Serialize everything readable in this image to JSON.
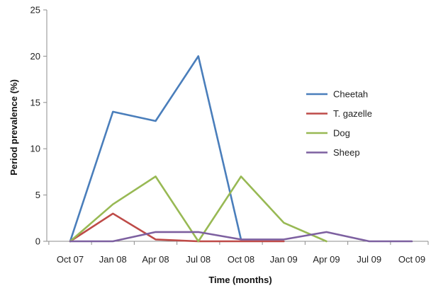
{
  "chart_data": {
    "type": "line",
    "title": "",
    "xlabel": "Time (months)",
    "ylabel": "Period prevalence (%)",
    "ylim": [
      0,
      25
    ],
    "yticks": [
      0,
      5,
      10,
      15,
      20,
      25
    ],
    "categories": [
      "Oct 07",
      "Jan 08",
      "Apr 08",
      "Jul 08",
      "Oct 08",
      "Jan 09",
      "Apr 09",
      "Jul 09",
      "Oct 09"
    ],
    "grid": false,
    "legend_position": "right",
    "series": [
      {
        "name": "Cheetah",
        "color": "#4a7ebb",
        "values": [
          0,
          14,
          13,
          20,
          0.2,
          null,
          null,
          null,
          null
        ]
      },
      {
        "name": "T. gazelle",
        "color": "#be4b48",
        "values": [
          0,
          3,
          0.2,
          0,
          0,
          0,
          null,
          null,
          null
        ]
      },
      {
        "name": "Dog",
        "color": "#98b954",
        "values": [
          0,
          4,
          7,
          0,
          7,
          2,
          0,
          null,
          null
        ]
      },
      {
        "name": "Sheep",
        "color": "#7d60a0",
        "values": [
          0,
          0,
          1,
          1,
          0.2,
          0.2,
          1,
          0,
          0
        ]
      }
    ]
  }
}
